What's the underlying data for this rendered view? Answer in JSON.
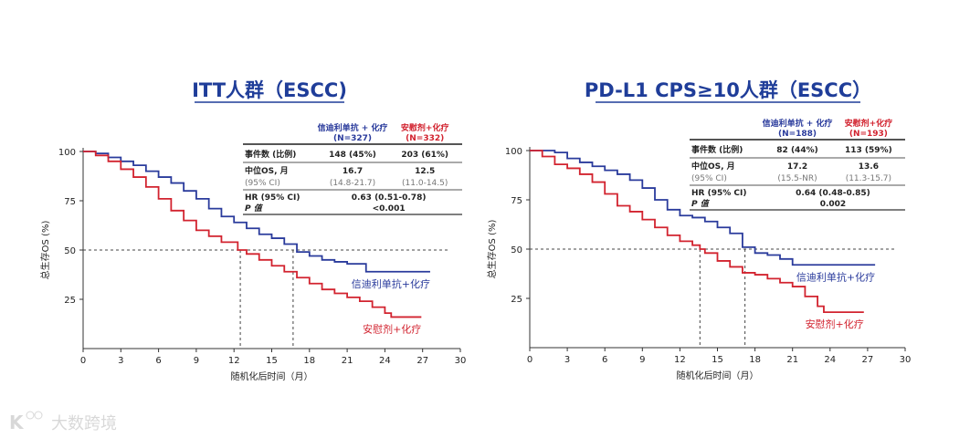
{
  "colors": {
    "blue": "#2a3b9c",
    "red": "#d2232f",
    "title": "#1f3d99"
  },
  "watermark": "大数跨境",
  "chart_data": [
    {
      "type": "line",
      "title": "ITT人群（ESCC)",
      "xlabel": "随机化后时间（月）",
      "ylabel": "总生存OS (%)",
      "xlim": [
        0,
        30
      ],
      "ylim": [
        0,
        100
      ],
      "xticks": [
        "0",
        "3",
        "6",
        "9",
        "12",
        "15",
        "18",
        "21",
        "24",
        "27",
        "30"
      ],
      "yticks": [
        "25",
        "50",
        "75",
        "100"
      ],
      "reference_line": 50,
      "medians": [
        12.5,
        16.7
      ],
      "table": {
        "arm1": "信迪利单抗 + 化疗",
        "arm1_n": "(N=327)",
        "arm2": "安慰剂+化疗",
        "arm2_n": "(N=332)",
        "events_label": "事件数 (比例)",
        "events1": "148 (45%)",
        "events2": "203 (61%)",
        "median_label": "中位OS, 月",
        "median1": "16.7",
        "median2": "12.5",
        "ci_label": "(95% CI)",
        "ci1": "(14.8-21.7)",
        "ci2": "(11.0-14.5)",
        "hr_label": "HR (95% CI)",
        "hr": "0.63 (0.51-0.78)",
        "p_label": "P 值",
        "p": "<0.001"
      },
      "series": [
        {
          "name": "信迪利单抗+化疗",
          "color": "blue",
          "x": [
            0,
            1,
            2,
            3,
            4,
            5,
            6,
            7,
            8,
            9,
            10,
            11,
            12,
            13,
            14,
            15,
            16,
            17,
            18,
            19,
            20,
            21,
            22,
            22.5,
            27.6
          ],
          "y": [
            100,
            99,
            97,
            95,
            93,
            90,
            87,
            84,
            80,
            76,
            71,
            67,
            64,
            61,
            58,
            56,
            53,
            49,
            47,
            45,
            44,
            43,
            43,
            39,
            39
          ]
        },
        {
          "name": "安慰剂+化疗",
          "color": "red",
          "x": [
            0,
            1,
            2,
            3,
            4,
            5,
            6,
            7,
            8,
            9,
            10,
            11,
            12.3,
            13,
            14,
            15,
            16,
            17,
            18,
            19,
            20,
            21,
            22,
            23,
            24,
            24.5,
            26.9
          ],
          "y": [
            100,
            98,
            95,
            91,
            87,
            82,
            76,
            70,
            65,
            60,
            57,
            54,
            50,
            48,
            45,
            42,
            39,
            36,
            33,
            30,
            28,
            26,
            24,
            21,
            18,
            16,
            16
          ]
        }
      ]
    },
    {
      "type": "line",
      "title": "PD-L1 CPS≥10人群（ESCC）",
      "xlabel": "随机化后时间（月）",
      "ylabel": "总生存OS (%)",
      "xlim": [
        0,
        30
      ],
      "ylim": [
        0,
        100
      ],
      "xticks": [
        "0",
        "3",
        "6",
        "9",
        "12",
        "15",
        "18",
        "21",
        "24",
        "27",
        "30"
      ],
      "yticks": [
        "25",
        "50",
        "75",
        "100"
      ],
      "reference_line": 50,
      "medians": [
        13.6,
        17.2
      ],
      "table": {
        "arm1": "信迪利单抗 + 化疗",
        "arm1_n": "(N=188)",
        "arm2": "安慰剂+化疗",
        "arm2_n": "(N=193)",
        "events_label": "事件数 (比例)",
        "events1": "82 (44%)",
        "events2": "113 (59%)",
        "median_label": "中位OS, 月",
        "median1": "17.2",
        "median2": "13.6",
        "ci_label": "(95% CI)",
        "ci1": "(15.5-NR)",
        "ci2": "(11.3-15.7)",
        "hr_label": "HR (95% CI)",
        "hr": "0.64 (0.48-0.85)",
        "p_label": "P 值",
        "p": "0.002"
      },
      "series": [
        {
          "name": "信迪利单抗+化疗",
          "color": "blue",
          "x": [
            0,
            2,
            3,
            4,
            5,
            6,
            7,
            8,
            9,
            10,
            11,
            12,
            13,
            14,
            15,
            16,
            17,
            18,
            19,
            20,
            21,
            27.6
          ],
          "y": [
            100,
            99,
            96,
            94,
            92,
            90,
            88,
            85,
            81,
            75,
            70,
            67,
            66,
            64,
            61,
            58,
            51,
            48,
            47,
            45,
            42,
            42
          ]
        },
        {
          "name": "安慰剂+化疗",
          "color": "red",
          "x": [
            0,
            1,
            2,
            3,
            4,
            5,
            6,
            7,
            8,
            9,
            10,
            11,
            12,
            13,
            13.6,
            14,
            15,
            16,
            17,
            18,
            19,
            20,
            21,
            22,
            23,
            23.5,
            26.7
          ],
          "y": [
            100,
            97,
            93,
            91,
            88,
            84,
            78,
            72,
            69,
            65,
            61,
            57,
            54,
            52,
            50,
            48,
            44,
            41,
            38,
            37,
            35,
            33,
            31,
            26,
            21,
            18,
            18
          ]
        }
      ]
    }
  ]
}
